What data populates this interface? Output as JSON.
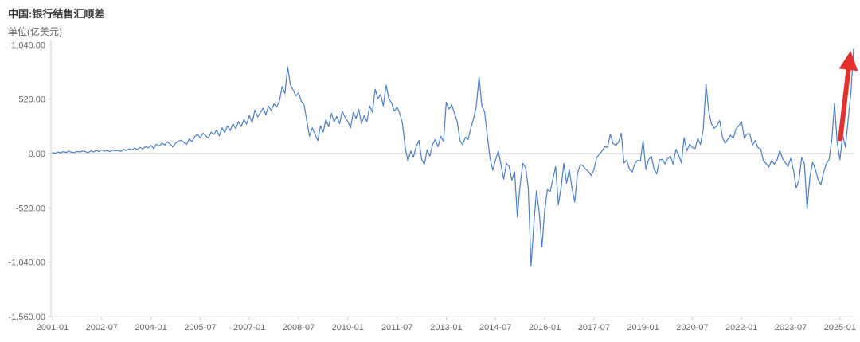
{
  "header": {
    "title": "中国:银行结售汇顺差",
    "unit": "单位(亿美元)"
  },
  "chart_data": {
    "type": "line",
    "title": "中国:银行结售汇顺差",
    "ylabel_unit": "单位(亿美元)",
    "x_start": "2001-01",
    "x_end": "2025-06",
    "x_frequency": "monthly",
    "x_tick_interval_months": 18,
    "x_tick_labels": [
      "2001-01",
      "2002-07",
      "2004-01",
      "2005-07",
      "2007-01",
      "2008-07",
      "2010-01",
      "2011-07",
      "2013-01",
      "2014-07",
      "2016-01",
      "2017-07",
      "2019-01",
      "2020-07",
      "2022-01",
      "2023-07",
      "2025-01"
    ],
    "y_ticks": [
      {
        "label": "1,040.00",
        "value": 1040
      },
      {
        "label": "520.00",
        "value": 520
      },
      {
        "label": "0.00",
        "value": 0
      },
      {
        "label": "-520.00",
        "value": -520
      },
      {
        "label": "-1,040.00",
        "value": -1040
      },
      {
        "label": "-1,560.00",
        "value": -1560
      }
    ],
    "ylim": [
      -1560,
      1090
    ],
    "grid": "zero-line-only",
    "legend": "none",
    "axis_color": "#cccccc",
    "tick_label_color": "#666666",
    "series": [
      {
        "name": "中国:银行结售汇顺差",
        "color": "#4a7dc9",
        "values": [
          8,
          3,
          14,
          6,
          18,
          10,
          22,
          12,
          9,
          20,
          15,
          24,
          18,
          8,
          25,
          15,
          30,
          20,
          35,
          22,
          28,
          18,
          32,
          26,
          30,
          20,
          40,
          28,
          45,
          35,
          52,
          40,
          58,
          45,
          65,
          55,
          78,
          48,
          90,
          70,
          100,
          82,
          112,
          92,
          62,
          100,
          118,
          128,
          108,
          85,
          140,
          115,
          160,
          185,
          150,
          195,
          170,
          148,
          205,
          182,
          225,
          170,
          245,
          200,
          265,
          220,
          285,
          238,
          305,
          258,
          325,
          282,
          365,
          295,
          415,
          350,
          390,
          435,
          370,
          455,
          410,
          475,
          445,
          505,
          640,
          575,
          829,
          655,
          610,
          552,
          580,
          500,
          465,
          315,
          165,
          245,
          185,
          125,
          265,
          205,
          325,
          255,
          385,
          305,
          355,
          285,
          405,
          345,
          305,
          245,
          395,
          335,
          425,
          285,
          365,
          305,
          455,
          395,
          615,
          525,
          565,
          455,
          655,
          525,
          485,
          405,
          445,
          385,
          285,
          55,
          -75,
          25,
          -35,
          65,
          125,
          -55,
          -105,
          35,
          -25,
          85,
          135,
          65,
          165,
          115,
          490,
          425,
          465,
          385,
          305,
          125,
          85,
          155,
          135,
          245,
          335,
          455,
          733,
          455,
          402,
          175,
          -45,
          -160,
          -65,
          25,
          -105,
          -245,
          -95,
          -125,
          -255,
          -175,
          -610,
          -305,
          -95,
          -135,
          -325,
          -1080,
          -685,
          -355,
          -565,
          -894,
          -544,
          -345,
          -365,
          -245,
          -125,
          -490,
          -325,
          -95,
          -285,
          -155,
          -335,
          -465,
          -192,
          -105,
          -118,
          -150,
          -172,
          -210,
          -158,
          -40,
          -5,
          25,
          65,
          60,
          185,
          95,
          80,
          108,
          195,
          -90,
          -65,
          -150,
          -178,
          -95,
          -65,
          -72,
          125,
          -152,
          -58,
          -26,
          -148,
          -195,
          -62,
          -55,
          -100,
          -48,
          -26,
          -105,
          40,
          -15,
          -90,
          150,
          25,
          90,
          58,
          48,
          145,
          85,
          235,
          666,
          408,
          280,
          242,
          265,
          316,
          158,
          98,
          137,
          175,
          146,
          238,
          266,
          305,
          146,
          188,
          190,
          80,
          124,
          57,
          42,
          -70,
          -97,
          -130,
          -67,
          -103,
          -62,
          30,
          -48,
          -88,
          -125,
          -46,
          -160,
          -330,
          -254,
          -40,
          -96,
          -530,
          -225,
          -85,
          -150,
          -248,
          -300,
          -185,
          -95,
          -60,
          125,
          480,
          105,
          -60,
          180,
          60,
          320,
          580,
          1005
        ]
      }
    ],
    "annotations": [
      {
        "type": "arrow",
        "color": "#e4302e",
        "target": "latest-point",
        "direction": "up",
        "from_value": 120,
        "to_value": 900
      }
    ]
  }
}
